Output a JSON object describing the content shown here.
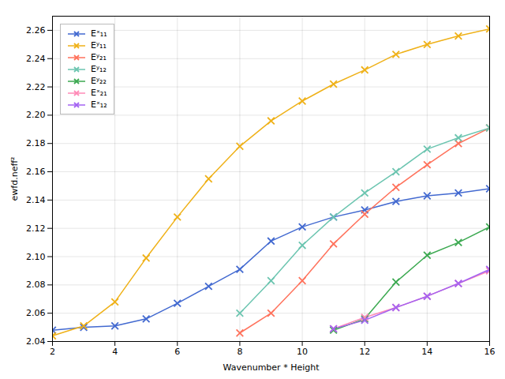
{
  "chart_data": {
    "type": "line",
    "xlabel": "Wavenumber * Height",
    "ylabel": "ewfd.neff²",
    "xlim": [
      2,
      16
    ],
    "ylim": [
      2.04,
      2.27
    ],
    "xticks": [
      2,
      4,
      6,
      8,
      10,
      12,
      14,
      16
    ],
    "yticks": [
      2.04,
      2.06,
      2.08,
      {
        "value": 2.1,
        "label": "2.10"
      },
      2.12,
      2.14,
      2.16,
      2.18,
      {
        "value": 2.2,
        "label": "2.20"
      },
      2.22,
      2.24,
      2.26
    ],
    "grid": true,
    "legend": "upper left",
    "marker": "x",
    "series": [
      {
        "name": "Eˣ₁₁",
        "x": [
          2,
          3,
          4,
          5,
          6,
          7,
          8,
          9,
          10,
          11,
          12,
          13,
          14,
          15,
          16
        ],
        "values": [
          2.048,
          2.05,
          2.051,
          2.056,
          2.067,
          2.079,
          2.091,
          2.111,
          2.121,
          2.128,
          2.133,
          2.139,
          2.143,
          2.145,
          2.148
        ]
      },
      {
        "name": "Eʸ₁₁",
        "x": [
          2,
          3,
          4,
          5,
          6,
          7,
          8,
          9,
          10,
          11,
          12,
          13,
          14,
          15,
          16
        ],
        "values": [
          2.044,
          2.051,
          2.068,
          2.099,
          2.128,
          2.155,
          2.178,
          2.196,
          2.21,
          2.222,
          2.232,
          2.243,
          2.25,
          2.256,
          2.261
        ]
      },
      {
        "name": "Eʸ₂₁",
        "x": [
          8,
          9,
          10,
          11,
          12,
          13,
          14,
          15,
          16
        ],
        "values": [
          2.046,
          2.06,
          2.083,
          2.109,
          2.13,
          2.149,
          2.165,
          2.18,
          2.191
        ]
      },
      {
        "name": "Eʸ₁₂",
        "x": [
          8,
          9,
          10,
          11,
          12,
          13,
          14,
          15,
          16
        ],
        "values": [
          2.06,
          2.083,
          2.108,
          2.128,
          2.145,
          2.16,
          2.176,
          2.184,
          2.191
        ]
      },
      {
        "name": "Eʸ₂₂",
        "x": [
          11,
          12,
          13,
          14,
          15,
          16
        ],
        "values": [
          2.048,
          2.056,
          2.082,
          2.101,
          2.11,
          2.121
        ]
      },
      {
        "name": "Eˣ₂₁",
        "x": [
          11,
          12,
          13,
          14,
          15,
          16
        ],
        "values": [
          2.049,
          2.057,
          2.064,
          2.072,
          2.081,
          2.09
        ]
      },
      {
        "name": "Eˣ₁₂",
        "x": [
          11,
          12,
          13,
          14,
          15,
          16
        ],
        "values": [
          2.049,
          2.055,
          2.064,
          2.072,
          2.081,
          2.091
        ]
      }
    ]
  }
}
